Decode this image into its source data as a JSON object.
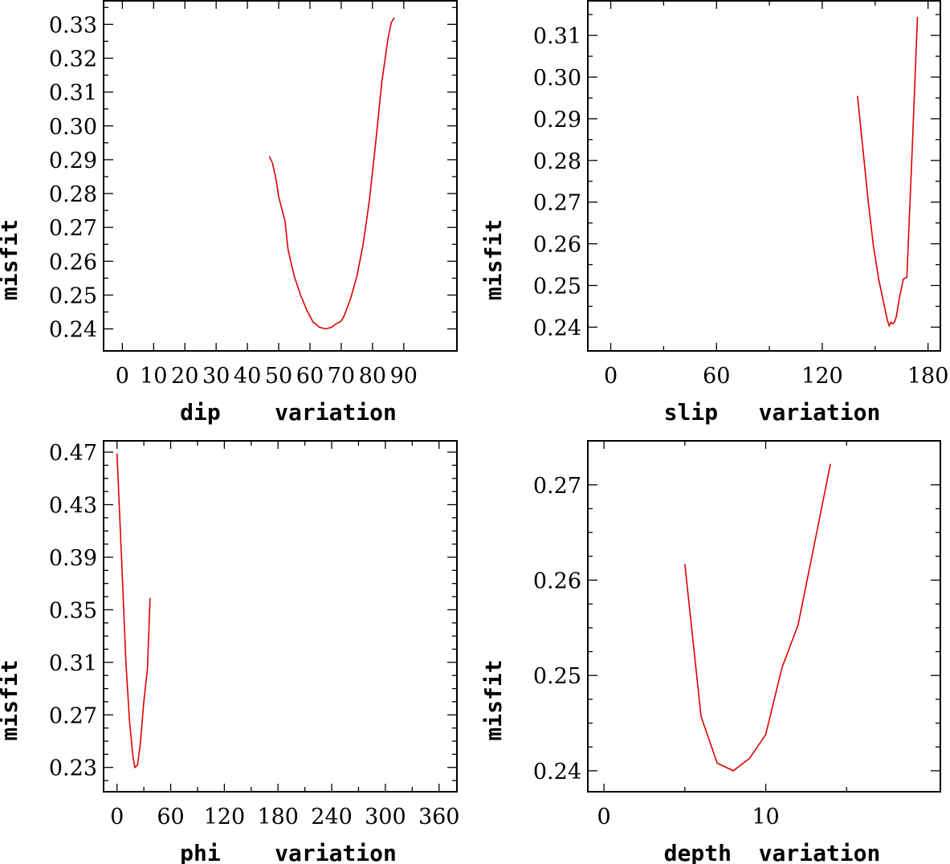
{
  "chart_data": [
    {
      "type": "line",
      "xlabel": "dip    variation",
      "ylabel": "misfit",
      "xlim": [
        -6,
        107
      ],
      "ylim": [
        0.2335,
        0.3372
      ],
      "xticks": [
        0,
        10,
        20,
        30,
        40,
        50,
        60,
        70,
        80,
        90
      ],
      "xticklabels": [
        "0",
        "10",
        "20",
        "30",
        "40",
        "50",
        "60",
        "70",
        "80",
        "90"
      ],
      "xminor": [],
      "yticks": [
        0.24,
        0.25,
        0.26,
        0.27,
        0.28,
        0.29,
        0.3,
        0.31,
        0.32,
        0.33
      ],
      "yticklabels": [
        "0.24",
        "0.25",
        "0.26",
        "0.27",
        "0.28",
        "0.29",
        "0.30",
        "0.31",
        "0.32",
        "0.33"
      ],
      "yminor": [
        0.245,
        0.255,
        0.265,
        0.275,
        0.285,
        0.295,
        0.305,
        0.315,
        0.325,
        0.335
      ],
      "series": [
        {
          "x": [
            47,
            48,
            49,
            50,
            52,
            53,
            55,
            57,
            59,
            61,
            62,
            63,
            65,
            67,
            68,
            70,
            71,
            73,
            75,
            77,
            79,
            81,
            83,
            85,
            86,
            87
          ],
          "y": [
            0.291,
            0.289,
            0.285,
            0.279,
            0.272,
            0.2635,
            0.2555,
            0.25,
            0.2455,
            0.242,
            0.2413,
            0.2405,
            0.24,
            0.2405,
            0.2413,
            0.2423,
            0.244,
            0.249,
            0.2555,
            0.265,
            0.278,
            0.295,
            0.313,
            0.326,
            0.3305,
            0.332
          ]
        }
      ]
    },
    {
      "type": "line",
      "xlabel": "slip   variation",
      "ylabel": "misfit",
      "xlim": [
        -13,
        187
      ],
      "ylim": [
        0.2343,
        0.3185
      ],
      "xticks": [
        0,
        60,
        120,
        180
      ],
      "xticklabels": [
        "0",
        "60",
        "120",
        "180"
      ],
      "xminor": [
        30,
        90,
        150
      ],
      "yticks": [
        0.24,
        0.25,
        0.26,
        0.27,
        0.28,
        0.29,
        0.3,
        0.31
      ],
      "yticklabels": [
        "0.24",
        "0.25",
        "0.26",
        "0.27",
        "0.28",
        "0.29",
        "0.30",
        "0.31"
      ],
      "yminor": [
        0.245,
        0.255,
        0.265,
        0.275,
        0.285,
        0.295,
        0.305,
        0.315
      ],
      "series": [
        {
          "x": [
            140,
            143,
            146,
            149,
            152,
            155,
            156,
            157,
            158,
            159,
            160,
            161,
            162,
            163,
            164,
            166,
            168,
            171,
            174
          ],
          "y": [
            0.2955,
            0.283,
            0.2705,
            0.2595,
            0.2515,
            0.2455,
            0.2435,
            0.2415,
            0.2403,
            0.2412,
            0.2408,
            0.2412,
            0.2425,
            0.245,
            0.2475,
            0.2515,
            0.252,
            0.2825,
            0.3145
          ]
        }
      ]
    },
    {
      "type": "line",
      "xlabel": "phi    variation",
      "ylabel": "misfit",
      "xlim": [
        -15,
        380
      ],
      "ylim": [
        0.2115,
        0.4792
      ],
      "xticks": [
        0,
        60,
        120,
        180,
        240,
        300,
        360
      ],
      "xticklabels": [
        "0",
        "60",
        "120",
        "180",
        "240",
        "300",
        "360"
      ],
      "xminor": [
        30,
        90,
        150,
        210,
        270,
        330
      ],
      "yticks": [
        0.23,
        0.27,
        0.31,
        0.35,
        0.39,
        0.43,
        0.47
      ],
      "yticklabels": [
        "0.23",
        "0.27",
        "0.31",
        "0.35",
        "0.39",
        "0.43",
        "0.47"
      ],
      "yminor": [
        0.22,
        0.24,
        0.25,
        0.26,
        0.28,
        0.29,
        0.3,
        0.32,
        0.33,
        0.34,
        0.36,
        0.37,
        0.38,
        0.4,
        0.41,
        0.42,
        0.44,
        0.45,
        0.46
      ],
      "series": [
        {
          "x": [
            0,
            5,
            10,
            14,
            18,
            20,
            23,
            26,
            30,
            34,
            37
          ],
          "y": [
            0.469,
            0.39,
            0.31,
            0.265,
            0.237,
            0.23,
            0.232,
            0.248,
            0.28,
            0.305,
            0.359
          ]
        }
      ]
    },
    {
      "type": "line",
      "xlabel": "depth  variation",
      "ylabel": "misfit",
      "xlim": [
        -1.0,
        20.8
      ],
      "ylim": [
        0.2378,
        0.2747
      ],
      "xticks": [
        0,
        10
      ],
      "xticklabels": [
        "0",
        "10"
      ],
      "xminor": [
        5,
        15
      ],
      "yticks": [
        0.24,
        0.25,
        0.26,
        0.27
      ],
      "yticklabels": [
        "0.24",
        "0.25",
        "0.26",
        "0.27"
      ],
      "yminor": [
        0.2425,
        0.245,
        0.2475,
        0.2525,
        0.255,
        0.2575,
        0.2625,
        0.265,
        0.2675
      ],
      "series": [
        {
          "x": [
            5,
            6,
            7,
            8,
            9,
            10,
            11,
            12,
            13,
            14
          ],
          "y": [
            0.2617,
            0.2457,
            0.2408,
            0.24,
            0.2413,
            0.2438,
            0.2508,
            0.2553,
            0.2637,
            0.2722
          ]
        }
      ]
    }
  ]
}
